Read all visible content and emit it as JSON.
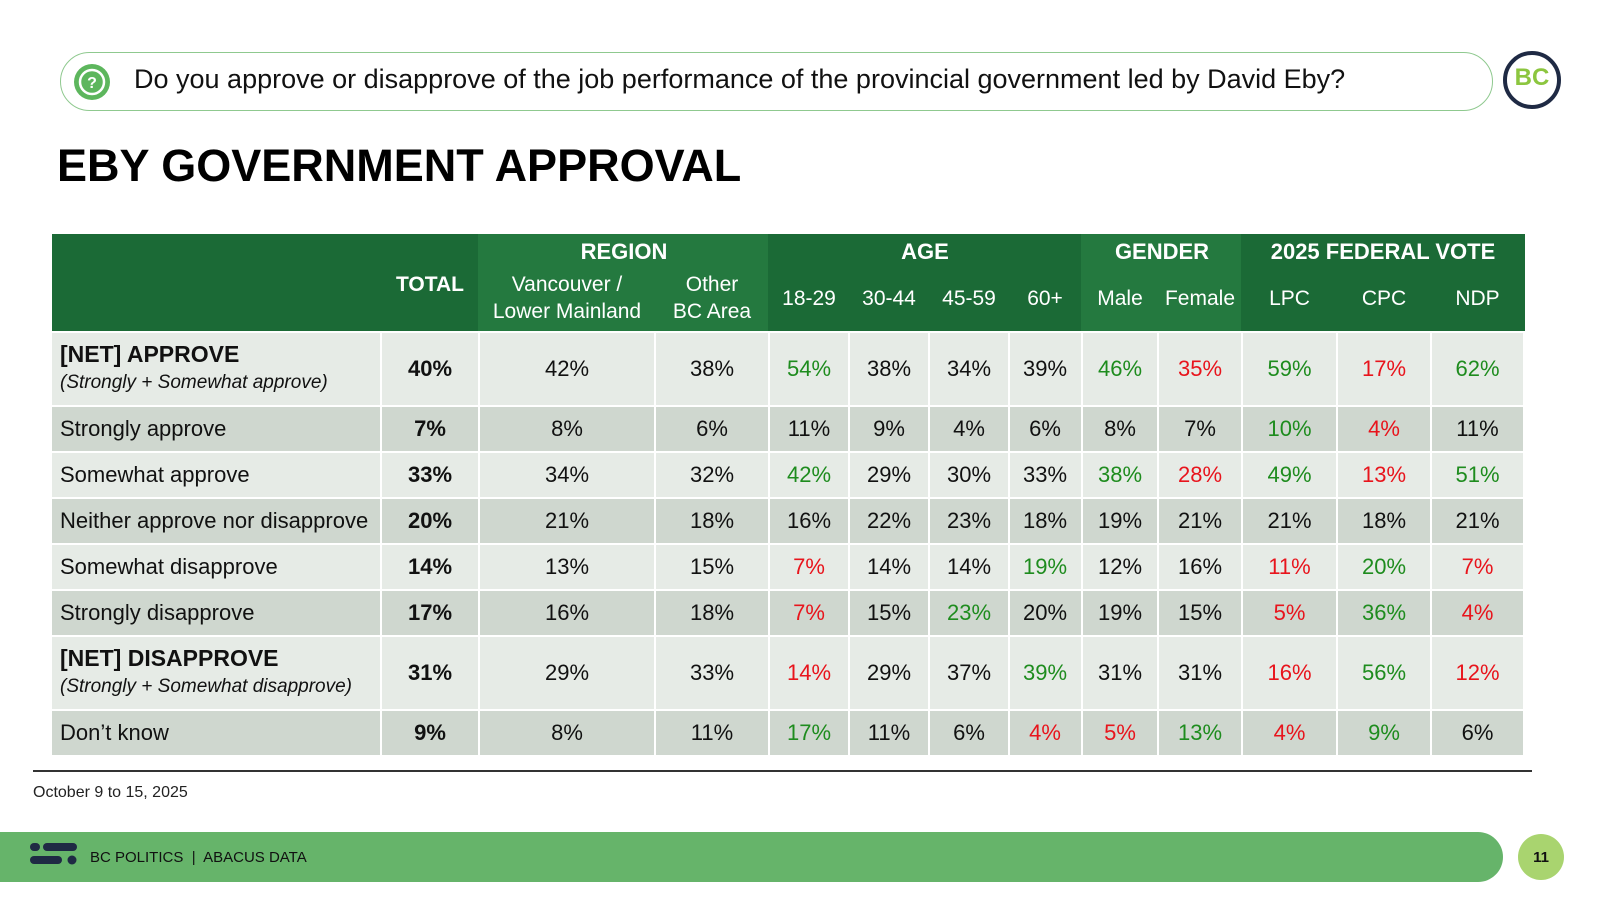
{
  "header": {
    "question": "Do you approve or disapprove of the job performance of the provincial government led by David Eby?",
    "logo": "BC",
    "title": "EBY GOVERNMENT APPROVAL"
  },
  "table": {
    "total_label": "TOTAL",
    "groups": [
      {
        "name": "REGION",
        "columns": [
          "Vancouver /\nLower Mainland",
          "Other\nBC Area"
        ]
      },
      {
        "name": "AGE",
        "columns": [
          "18-29",
          "30-44",
          "45-59",
          "60+"
        ]
      },
      {
        "name": "GENDER",
        "columns": [
          "Male",
          "Female"
        ]
      },
      {
        "name": "2025 FEDERAL VOTE",
        "columns": [
          "LPC",
          "CPC",
          "NDP"
        ]
      }
    ],
    "rows": [
      {
        "label": "[NET] APPROVE",
        "sublabel": "(Strongly + Somewhat approve)",
        "cells": [
          "40%",
          "42%",
          "38%",
          "54%",
          "38%",
          "34%",
          "39%",
          "46%",
          "35%",
          "59%",
          "17%",
          "62%"
        ],
        "colors": [
          "#111111",
          "#111111",
          "#111111",
          "#1e8c1e",
          "#111111",
          "#111111",
          "#111111",
          "#1e8c1e",
          "#e8141c",
          "#1e8c1e",
          "#e8141c",
          "#1e8c1e"
        ]
      },
      {
        "label": "Strongly approve",
        "cells": [
          "7%",
          "8%",
          "6%",
          "11%",
          "9%",
          "4%",
          "6%",
          "8%",
          "7%",
          "10%",
          "4%",
          "11%"
        ],
        "colors": [
          "#111111",
          "#111111",
          "#111111",
          "#111111",
          "#111111",
          "#111111",
          "#111111",
          "#111111",
          "#111111",
          "#1e8c1e",
          "#e8141c",
          "#111111"
        ]
      },
      {
        "label": "Somewhat approve",
        "cells": [
          "33%",
          "34%",
          "32%",
          "42%",
          "29%",
          "30%",
          "33%",
          "38%",
          "28%",
          "49%",
          "13%",
          "51%"
        ],
        "colors": [
          "#111111",
          "#111111",
          "#111111",
          "#1e8c1e",
          "#111111",
          "#111111",
          "#111111",
          "#1e8c1e",
          "#e8141c",
          "#1e8c1e",
          "#e8141c",
          "#1e8c1e"
        ]
      },
      {
        "label": "Neither approve nor disapprove",
        "cells": [
          "20%",
          "21%",
          "18%",
          "16%",
          "22%",
          "23%",
          "18%",
          "19%",
          "21%",
          "21%",
          "18%",
          "21%"
        ],
        "colors": [
          "#111111",
          "#111111",
          "#111111",
          "#111111",
          "#111111",
          "#111111",
          "#111111",
          "#111111",
          "#111111",
          "#111111",
          "#111111",
          "#111111"
        ]
      },
      {
        "label": "Somewhat disapprove",
        "cells": [
          "14%",
          "13%",
          "15%",
          "7%",
          "14%",
          "14%",
          "19%",
          "12%",
          "16%",
          "11%",
          "20%",
          "7%"
        ],
        "colors": [
          "#111111",
          "#111111",
          "#111111",
          "#e8141c",
          "#111111",
          "#111111",
          "#1e8c1e",
          "#111111",
          "#111111",
          "#e8141c",
          "#1e8c1e",
          "#e8141c"
        ]
      },
      {
        "label": "Strongly disapprove",
        "cells": [
          "17%",
          "16%",
          "18%",
          "7%",
          "15%",
          "23%",
          "20%",
          "19%",
          "15%",
          "5%",
          "36%",
          "4%"
        ],
        "colors": [
          "#111111",
          "#111111",
          "#111111",
          "#e8141c",
          "#111111",
          "#1e8c1e",
          "#111111",
          "#111111",
          "#111111",
          "#e8141c",
          "#1e8c1e",
          "#e8141c"
        ]
      },
      {
        "label": "[NET] DISAPPROVE",
        "sublabel": "(Strongly + Somewhat disapprove)",
        "cells": [
          "31%",
          "29%",
          "33%",
          "14%",
          "29%",
          "37%",
          "39%",
          "31%",
          "31%",
          "16%",
          "56%",
          "12%"
        ],
        "colors": [
          "#111111",
          "#111111",
          "#111111",
          "#e8141c",
          "#111111",
          "#111111",
          "#1e8c1e",
          "#111111",
          "#111111",
          "#e8141c",
          "#1e8c1e",
          "#e8141c"
        ]
      },
      {
        "label": "Don’t know",
        "cells": [
          "9%",
          "8%",
          "11%",
          "17%",
          "11%",
          "6%",
          "4%",
          "5%",
          "13%",
          "4%",
          "9%",
          "6%"
        ],
        "colors": [
          "#111111",
          "#111111",
          "#111111",
          "#1e8c1e",
          "#111111",
          "#111111",
          "#e8141c",
          "#e8141c",
          "#1e8c1e",
          "#e8141c",
          "#1e8c1e",
          "#111111"
        ]
      }
    ]
  },
  "footer": {
    "date": "October 9 to 15, 2025",
    "brand": "BC POLITICS  |  ABACUS DATA",
    "page": "11"
  }
}
